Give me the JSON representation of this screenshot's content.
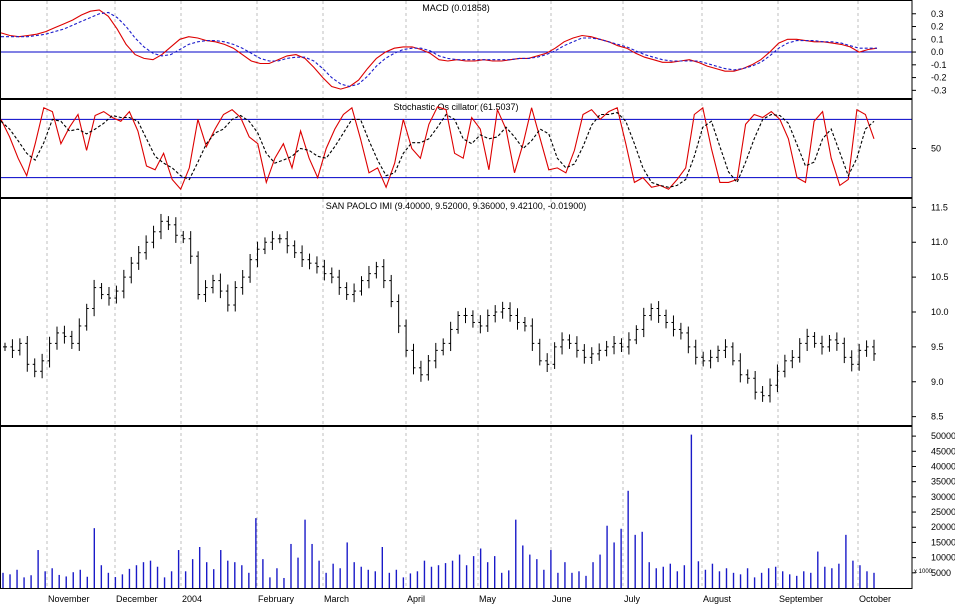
{
  "chart_data": [
    {
      "type": "line",
      "panel": "macd",
      "title": "MACD (0.01858)",
      "ylim": [
        -0.36,
        0.4
      ],
      "ticks": [
        0.3,
        0.2,
        0.1,
        0.0,
        -0.1,
        -0.2,
        -0.3
      ],
      "tick_labels": [
        "0.3",
        "0.2",
        "0.1",
        "0.0",
        "-0.1",
        "-0.2",
        "-0.3"
      ],
      "reference_lines": [
        0.0
      ],
      "series": [
        {
          "color": "#dd0000",
          "style": "solid",
          "values": [
            0.15,
            0.13,
            0.12,
            0.13,
            0.14,
            0.16,
            0.19,
            0.22,
            0.25,
            0.29,
            0.32,
            0.33,
            0.28,
            0.18,
            0.06,
            -0.02,
            -0.05,
            -0.06,
            -0.02,
            0.04,
            0.1,
            0.12,
            0.11,
            0.09,
            0.08,
            0.06,
            0.03,
            -0.02,
            -0.07,
            -0.09,
            -0.09,
            -0.06,
            -0.03,
            -0.02,
            -0.05,
            -0.12,
            -0.2,
            -0.27,
            -0.29,
            -0.27,
            -0.22,
            -0.13,
            -0.05,
            0.0,
            0.03,
            0.04,
            0.04,
            0.02,
            -0.01,
            -0.06,
            -0.07,
            -0.06,
            -0.07,
            -0.07,
            -0.06,
            -0.07,
            -0.07,
            -0.06,
            -0.05,
            -0.05,
            -0.03,
            -0.01,
            0.03,
            0.08,
            0.11,
            0.13,
            0.12,
            0.1,
            0.08,
            0.05,
            0.03,
            -0.01,
            -0.04,
            -0.06,
            -0.08,
            -0.08,
            -0.07,
            -0.06,
            -0.08,
            -0.11,
            -0.13,
            -0.15,
            -0.15,
            -0.13,
            -0.1,
            -0.06,
            0.0,
            0.07,
            0.1,
            0.1,
            0.09,
            0.08,
            0.08,
            0.07,
            0.06,
            0.04,
            0.0,
            0.02,
            0.03
          ]
        },
        {
          "color": "#1c1ccc",
          "style": "dashed",
          "values": [
            0.12,
            0.12,
            0.12,
            0.12,
            0.13,
            0.14,
            0.16,
            0.18,
            0.21,
            0.24,
            0.27,
            0.3,
            0.31,
            0.27,
            0.2,
            0.11,
            0.04,
            -0.01,
            -0.03,
            -0.02,
            0.02,
            0.06,
            0.08,
            0.09,
            0.09,
            0.08,
            0.06,
            0.03,
            -0.01,
            -0.05,
            -0.07,
            -0.07,
            -0.05,
            -0.04,
            -0.04,
            -0.07,
            -0.13,
            -0.2,
            -0.25,
            -0.27,
            -0.25,
            -0.19,
            -0.11,
            -0.05,
            -0.01,
            0.02,
            0.03,
            0.03,
            0.01,
            -0.03,
            -0.05,
            -0.06,
            -0.06,
            -0.06,
            -0.06,
            -0.06,
            -0.06,
            -0.06,
            -0.05,
            -0.05,
            -0.04,
            -0.02,
            0.01,
            0.05,
            0.08,
            0.11,
            0.11,
            0.1,
            0.08,
            0.06,
            0.04,
            0.01,
            -0.02,
            -0.04,
            -0.06,
            -0.07,
            -0.07,
            -0.07,
            -0.07,
            -0.09,
            -0.11,
            -0.13,
            -0.14,
            -0.13,
            -0.11,
            -0.08,
            -0.03,
            0.03,
            0.07,
            0.09,
            0.09,
            0.09,
            0.08,
            0.08,
            0.07,
            0.05,
            0.03,
            0.03,
            0.03
          ]
        }
      ]
    },
    {
      "type": "line",
      "panel": "stochastic",
      "title": "Stochastic Os cillator (61.5037)",
      "ylim": [
        0,
        100
      ],
      "ticks": [
        50
      ],
      "tick_labels": [
        "50"
      ],
      "reference_lines": [
        80,
        20
      ],
      "series": [
        {
          "color": "#dd0000",
          "style": "solid",
          "values": [
            80,
            62,
            40,
            22,
            55,
            92,
            88,
            55,
            72,
            85,
            48,
            84,
            88,
            82,
            78,
            88,
            68,
            32,
            28,
            45,
            18,
            8,
            30,
            80,
            52,
            70,
            85,
            90,
            82,
            62,
            55,
            15,
            40,
            55,
            30,
            68,
            40,
            20,
            50,
            70,
            85,
            92,
            60,
            25,
            30,
            10,
            35,
            80,
            50,
            40,
            75,
            93,
            90,
            45,
            40,
            82,
            70,
            28,
            90,
            70,
            25,
            55,
            92,
            60,
            28,
            30,
            25,
            48,
            85,
            90,
            80,
            88,
            92,
            55,
            15,
            20,
            10,
            12,
            8,
            18,
            30,
            85,
            92,
            50,
            15,
            15,
            18,
            75,
            85,
            82,
            88,
            80,
            60,
            20,
            15,
            78,
            88,
            40,
            12,
            18,
            90,
            85,
            60
          ]
        },
        {
          "color": "#000000",
          "style": "dashed",
          "values": [
            78,
            70,
            58,
            45,
            38,
            56,
            80,
            78,
            68,
            70,
            65,
            70,
            76,
            84,
            82,
            82,
            78,
            60,
            42,
            35,
            30,
            22,
            18,
            36,
            55,
            66,
            70,
            80,
            84,
            78,
            66,
            45,
            35,
            38,
            42,
            50,
            48,
            42,
            40,
            52,
            66,
            80,
            80,
            58,
            38,
            22,
            25,
            45,
            56,
            56,
            60,
            72,
            85,
            80,
            60,
            55,
            64,
            60,
            62,
            72,
            62,
            50,
            58,
            70,
            65,
            40,
            30,
            34,
            52,
            74,
            85,
            85,
            87,
            78,
            55,
            30,
            15,
            12,
            10,
            12,
            18,
            42,
            72,
            78,
            52,
            26,
            15,
            36,
            60,
            80,
            85,
            84,
            76,
            54,
            32,
            36,
            60,
            70,
            46,
            22,
            40,
            70,
            78
          ]
        }
      ]
    },
    {
      "type": "ohlc",
      "panel": "price",
      "title": "SAN PAOLO IMI (9.40000, 9.52000, 9.36000, 9.42100, -0.01900)",
      "ylim": [
        8.38,
        11.62
      ],
      "ticks": [
        11.5,
        11.0,
        10.5,
        10.0,
        9.5,
        9.0,
        8.5
      ],
      "tick_labels": [
        "11.5",
        "11.0",
        "10.5",
        "10.0",
        "9.5",
        "9.0",
        "8.5"
      ],
      "close": [
        9.5,
        9.45,
        9.55,
        9.25,
        9.15,
        9.3,
        9.55,
        9.7,
        9.65,
        9.55,
        9.8,
        10.05,
        10.35,
        10.25,
        10.2,
        10.3,
        10.5,
        10.7,
        10.85,
        11.0,
        11.15,
        11.3,
        11.25,
        11.1,
        11.05,
        10.8,
        10.25,
        10.35,
        10.45,
        10.3,
        10.1,
        10.35,
        10.5,
        10.75,
        10.9,
        11.0,
        11.05,
        11.05,
        10.95,
        10.85,
        10.75,
        10.7,
        10.65,
        10.55,
        10.5,
        10.35,
        10.25,
        10.3,
        10.45,
        10.55,
        10.65,
        10.45,
        10.15,
        9.8,
        9.45,
        9.2,
        9.1,
        9.3,
        9.45,
        9.55,
        9.75,
        9.95,
        9.95,
        9.85,
        9.8,
        9.95,
        10.0,
        10.05,
        9.95,
        9.85,
        9.8,
        9.55,
        9.3,
        9.25,
        9.5,
        9.6,
        9.55,
        9.45,
        9.35,
        9.4,
        9.45,
        9.5,
        9.55,
        9.5,
        9.6,
        9.75,
        9.95,
        10.05,
        9.95,
        9.85,
        9.75,
        9.7,
        9.5,
        9.35,
        9.3,
        9.35,
        9.45,
        9.5,
        9.3,
        9.1,
        9.05,
        8.85,
        8.8,
        8.95,
        9.15,
        9.3,
        9.35,
        9.55,
        9.65,
        9.55,
        9.5,
        9.6,
        9.55,
        9.35,
        9.25,
        9.45,
        9.5,
        9.4
      ]
    },
    {
      "type": "bar",
      "panel": "volume",
      "ylim": [
        0,
        53000
      ],
      "ticks": [
        50000,
        45000,
        40000,
        35000,
        30000,
        25000,
        20000,
        15000,
        10000,
        5000
      ],
      "tick_labels": [
        "50000",
        "45000",
        "40000",
        "35000",
        "30000",
        "25000",
        "20000",
        "15000",
        "10000",
        "5000"
      ],
      "unit_label": "x 1000",
      "values": [
        5000,
        4500,
        6000,
        3500,
        4200,
        12500,
        5500,
        6500,
        4300,
        3800,
        5200,
        6000,
        3700,
        19700,
        7500,
        5000,
        3600,
        4500,
        6300,
        7500,
        8500,
        9000,
        7000,
        3500,
        5500,
        12500,
        5500,
        9500,
        13500,
        8500,
        6200,
        12500,
        9000,
        8500,
        7500,
        5000,
        23000,
        9500,
        3500,
        6500,
        3300,
        14500,
        10000,
        22500,
        14500,
        9000,
        5000,
        8000,
        6500,
        15000,
        8500,
        7000,
        6000,
        5500,
        13500,
        5000,
        6000,
        3500,
        4800,
        5500,
        9000,
        7000,
        7500,
        8200,
        9000,
        11000,
        7500,
        10500,
        13000,
        8500,
        10500,
        5000,
        5800,
        22500,
        14000,
        11000,
        9500,
        6000,
        12500,
        5000,
        8500,
        5000,
        5500,
        4000,
        8500,
        11000,
        20500,
        15000,
        19500,
        32000,
        17500,
        18500,
        8500,
        6500,
        7000,
        8000,
        5500,
        7500,
        50500,
        8800,
        6000,
        8000,
        5500,
        6500,
        5000,
        4500,
        6500,
        3500,
        5000,
        6500,
        7000,
        5500,
        4500,
        4000,
        5500,
        5000,
        12000,
        7000,
        6500,
        8000,
        17500,
        9000,
        7500,
        5500,
        5000
      ]
    }
  ],
  "x_axis": {
    "labels": [
      "November",
      "December",
      "2004",
      "February",
      "March",
      "April",
      "May",
      "June",
      "July",
      "August",
      "September",
      "October"
    ]
  },
  "colors": {
    "background": "#ffffff",
    "frame": "#000000",
    "grid": "#bfbfbf",
    "reference": "#0000c8",
    "price_bars": "#000000",
    "volume_bars": "#1a1ac8"
  }
}
